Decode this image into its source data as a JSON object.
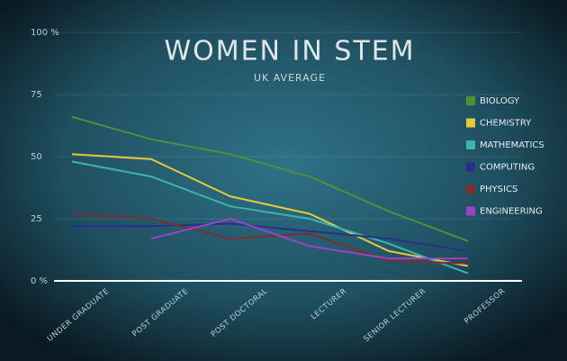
{
  "chart_data": {
    "type": "line",
    "title": "WOMEN IN STEM",
    "subtitle": "UK AVERAGE",
    "categories": [
      "UNDER GRADUATE",
      "POST GRADUATE",
      "POST DOCTORAL",
      "LECTURER",
      "SENIOR LECTURER",
      "PROFESSOR"
    ],
    "ylim": [
      0,
      100
    ],
    "yticks": [
      {
        "value": 0,
        "label": "0 %"
      },
      25,
      50,
      75,
      {
        "value": 100,
        "label": "100 %"
      }
    ],
    "grid": true,
    "series": [
      {
        "name": "BIOLOGY",
        "color": "#4f8f3a",
        "values": [
          66,
          57,
          51,
          42,
          28,
          16
        ]
      },
      {
        "name": "CHEMISTRY",
        "color": "#e6c83c",
        "values": [
          51,
          49,
          34,
          27,
          12,
          6
        ]
      },
      {
        "name": "MATHEMATICS",
        "color": "#3db3ad",
        "values": [
          48,
          42,
          30,
          25,
          15,
          3
        ]
      },
      {
        "name": "COMPUTING",
        "color": "#2b2f8c",
        "values": [
          22,
          22,
          23,
          20,
          17,
          12
        ]
      },
      {
        "name": "PHYSICS",
        "color": "#7b2e2e",
        "values": [
          27,
          25,
          17,
          19,
          8,
          7
        ]
      },
      {
        "name": "ENGINEERING",
        "color": "#9b43c4",
        "values": [
          null,
          17,
          25,
          14,
          9,
          9
        ]
      }
    ]
  }
}
